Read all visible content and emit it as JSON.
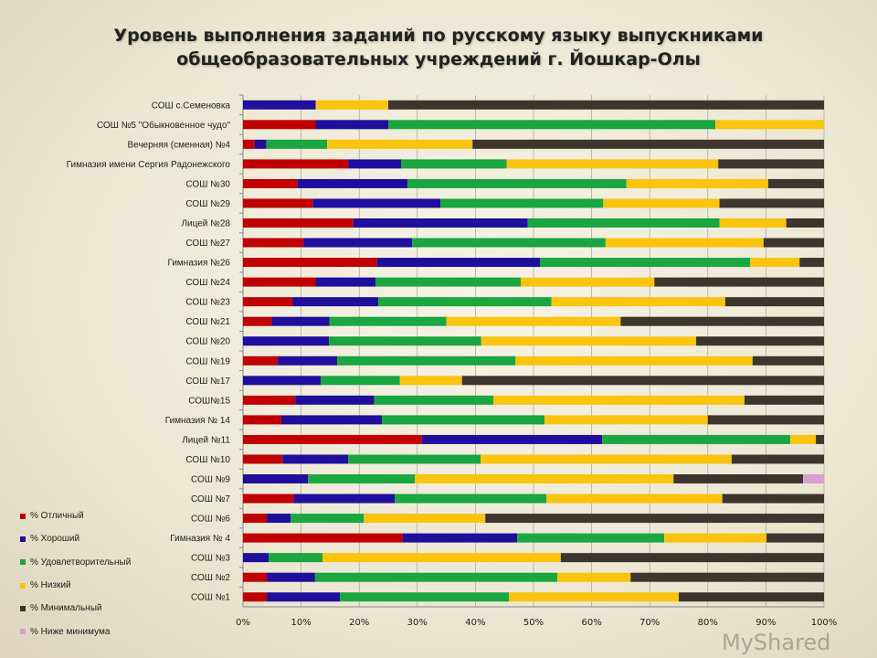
{
  "title_line1": "Уровень выполнения заданий по русскому языку выпускниками",
  "title_line2": "общеобразовательных учреждений г. Йошкар-Олы",
  "watermark": "MyShared",
  "chart_data": {
    "type": "bar",
    "orientation": "horizontal",
    "stacked": "percent",
    "title": "Уровень выполнения заданий по русскому языку выпускниками общеобразовательных учреждений г. Йошкар-Олы",
    "xlim": [
      0,
      100
    ],
    "x_ticks": [
      "0%",
      "10%",
      "20%",
      "30%",
      "40%",
      "50%",
      "60%",
      "70%",
      "80%",
      "90%",
      "100%"
    ],
    "grid": "vertical",
    "legend_position": "left-bottom",
    "categories": [
      "СОШ с.Семеновка",
      "СОШ №5 \"Обыкновенное чудо\"",
      "Вечерняя (сменная) №4",
      "Гимназия имени Сергия Радонежского",
      "СОШ №30",
      "СОШ №29",
      "Лицей №28",
      "СОШ №27",
      "Гимназия №26",
      "СОШ №24",
      "СОШ №23",
      "СОШ №21",
      "СОШ №20",
      "СОШ №19",
      "СОШ №17",
      "СОШ№15",
      "Гимназия № 14",
      "Лицей №11",
      "СОШ №10",
      "СОШ №9",
      "СОШ №7",
      "СОШ №6",
      "Гимназия № 4",
      "СОШ №3",
      "СОШ №2",
      "СОШ №1"
    ],
    "series": [
      {
        "name": "% Отличный",
        "color": "#c00000",
        "values": [
          0,
          12.5,
          2,
          18.1,
          9.4,
          12,
          19,
          10.4,
          23.1,
          12.5,
          8.5,
          4.9,
          0,
          6,
          0,
          9,
          6.6,
          30.8,
          6.8,
          0,
          8.7,
          4.1,
          27.5,
          0,
          4.1,
          4.1
        ]
      },
      {
        "name": "% Хороший",
        "color": "#1f0f9c",
        "values": [
          12.5,
          12.5,
          2,
          9.1,
          18.9,
          22,
          30,
          18.7,
          28,
          10.3,
          14.8,
          10,
          14.8,
          10.2,
          13.4,
          13.6,
          17.3,
          31,
          11.3,
          11.2,
          17.4,
          4.1,
          19.7,
          4.4,
          8.3,
          12.6
        ]
      },
      {
        "name": "% Удовлетворительный",
        "color": "#1aa640",
        "values": [
          0,
          56.3,
          10.5,
          18.2,
          37.7,
          28,
          33,
          33.3,
          36.2,
          25,
          29.8,
          20.1,
          26.2,
          30.7,
          13.6,
          20.5,
          28,
          32.4,
          22.8,
          18.4,
          26.1,
          12.6,
          25.3,
          9.3,
          41.7,
          29.1
        ]
      },
      {
        "name": "% Низкий",
        "color": "#fbc40f",
        "values": [
          12.5,
          18.7,
          25,
          36.4,
          24.4,
          20,
          11.5,
          27.2,
          8.5,
          23,
          29.9,
          30,
          37,
          40.8,
          10.7,
          43.2,
          28.1,
          4.4,
          43.2,
          44.5,
          30.3,
          20.9,
          17.6,
          41,
          12.6,
          29.2
        ]
      },
      {
        "name": "% Минимальный",
        "color": "#3e352e",
        "values": [
          75,
          0,
          60.5,
          18.2,
          9.6,
          18,
          6.5,
          10.4,
          4.2,
          29.2,
          17,
          35,
          22,
          12.3,
          62.3,
          13.7,
          20,
          1.4,
          15.9,
          22.3,
          17.5,
          58.3,
          9.9,
          45.3,
          33.3,
          25
        ]
      },
      {
        "name": "% Ниже минимума",
        "color": "#d89fcf",
        "values": [
          0,
          0,
          0,
          0,
          0,
          0,
          0,
          0,
          0,
          0,
          0,
          0,
          0,
          0,
          0,
          0,
          0,
          0,
          0,
          3.6,
          0,
          0,
          0,
          0,
          0,
          0
        ]
      }
    ]
  }
}
